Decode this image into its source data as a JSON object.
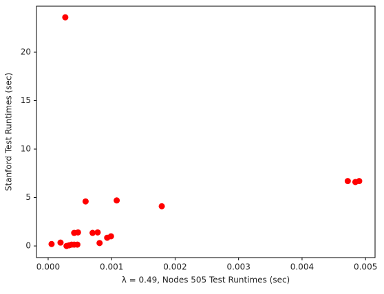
{
  "chart_data": {
    "type": "scatter",
    "xlabel": "λ = 0.49, Nodes 505 Test Runtimes (sec)",
    "ylabel": "Stanford Test Runtimes (sec)",
    "series": [
      {
        "color": "#ff0000",
        "x": [
          5.4e-05,
          0.000195,
          0.00027,
          0.00029,
          0.00033,
          0.00037,
          0.00041,
          0.00041,
          0.00046,
          0.00047,
          0.00059,
          0.0007,
          0.00078,
          0.00081,
          0.00093,
          0.00099,
          0.00108,
          0.00179,
          0.00472,
          0.00484,
          0.0049
        ],
        "values": [
          0.2,
          0.35,
          23.6,
          0.0,
          0.07,
          0.14,
          1.35,
          0.14,
          0.14,
          1.4,
          4.6,
          1.35,
          1.4,
          0.3,
          0.85,
          1.0,
          4.7,
          4.1,
          6.7,
          6.6,
          6.7
        ]
      }
    ],
    "xlim": [
      -0.000184,
      0.00515
    ],
    "ylim": [
      -1.2,
      24.75
    ],
    "xticks": [
      {
        "value": 0,
        "label": "0.000"
      },
      {
        "value": 0.001,
        "label": "0.001"
      },
      {
        "value": 0.002,
        "label": "0.002"
      },
      {
        "value": 0.003,
        "label": "0.003"
      },
      {
        "value": 0.004,
        "label": "0.004"
      },
      {
        "value": 0.005,
        "label": "0.005"
      }
    ],
    "yticks": [
      0,
      5,
      10,
      15,
      20
    ]
  }
}
